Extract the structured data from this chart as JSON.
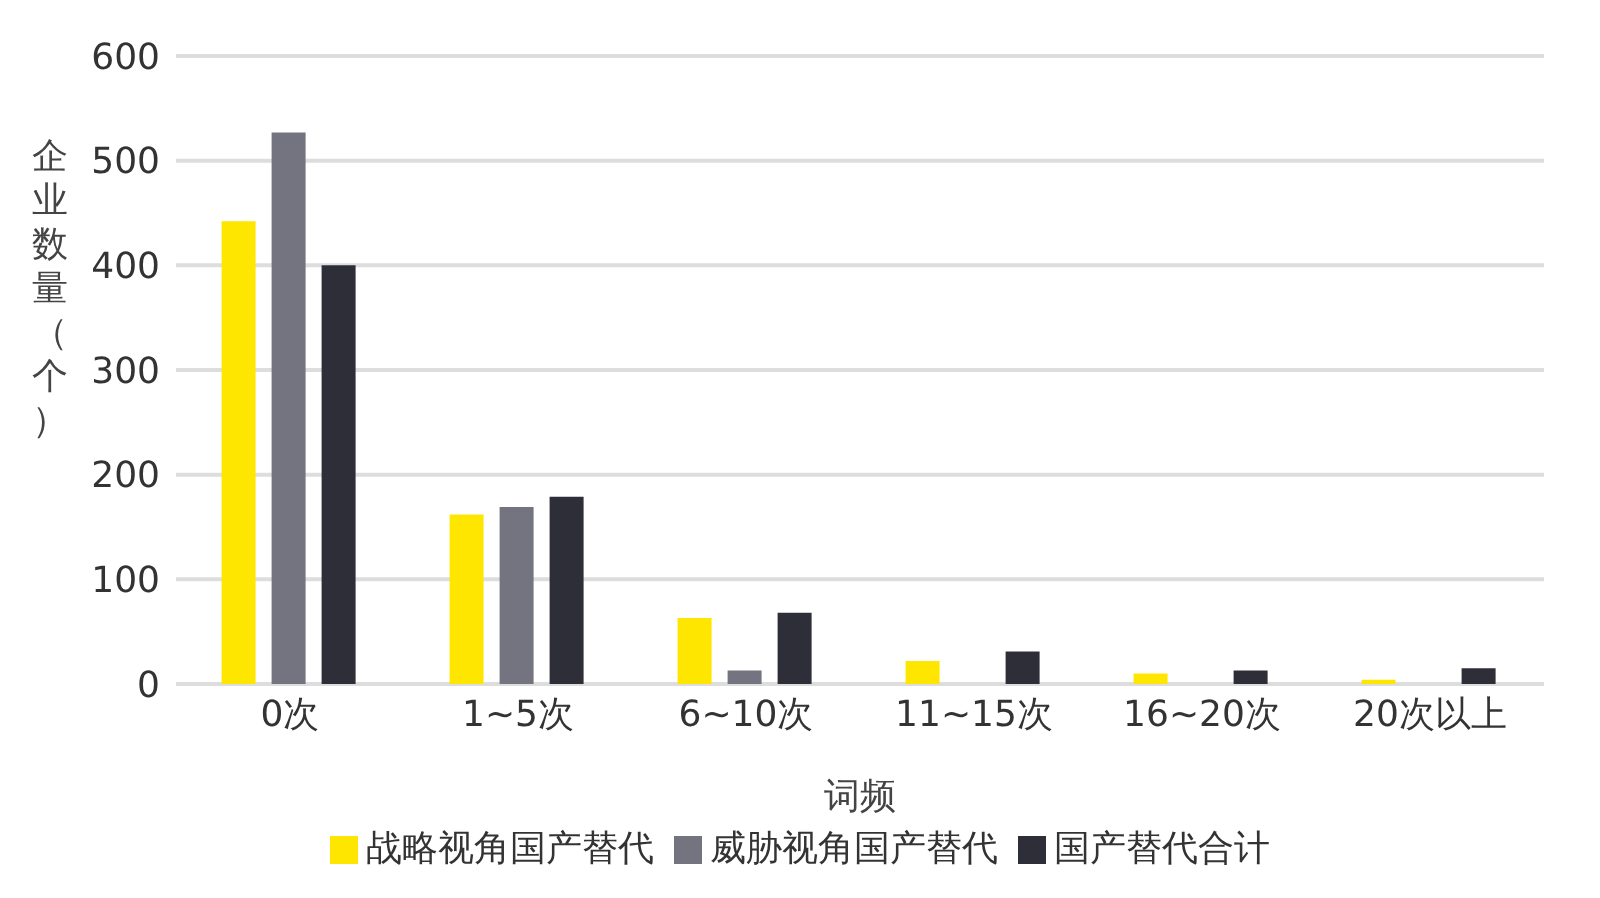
{
  "chart_data": {
    "type": "bar",
    "xlabel": "词频",
    "ylabel": "企业数量（个）",
    "categories": [
      "0次",
      "1~5次",
      "6~10次",
      "11~15次",
      "16~20次",
      "20次以上"
    ],
    "series": [
      {
        "name": "战略视角国产替代",
        "color": "#ffe600",
        "values": [
          442,
          162,
          63,
          22,
          10,
          4
        ]
      },
      {
        "name": "威胁视角国产替代",
        "color": "#747480",
        "values": [
          527,
          169,
          13,
          0,
          0,
          0
        ]
      },
      {
        "name": "国产替代合计",
        "color": "#2e2e38",
        "values": [
          400,
          179,
          68,
          31,
          13,
          15
        ]
      }
    ],
    "ylim": [
      0,
      600
    ],
    "yticks": [
      0,
      100,
      200,
      300,
      400,
      500,
      600
    ],
    "grid": "y",
    "legend": "bottom"
  }
}
